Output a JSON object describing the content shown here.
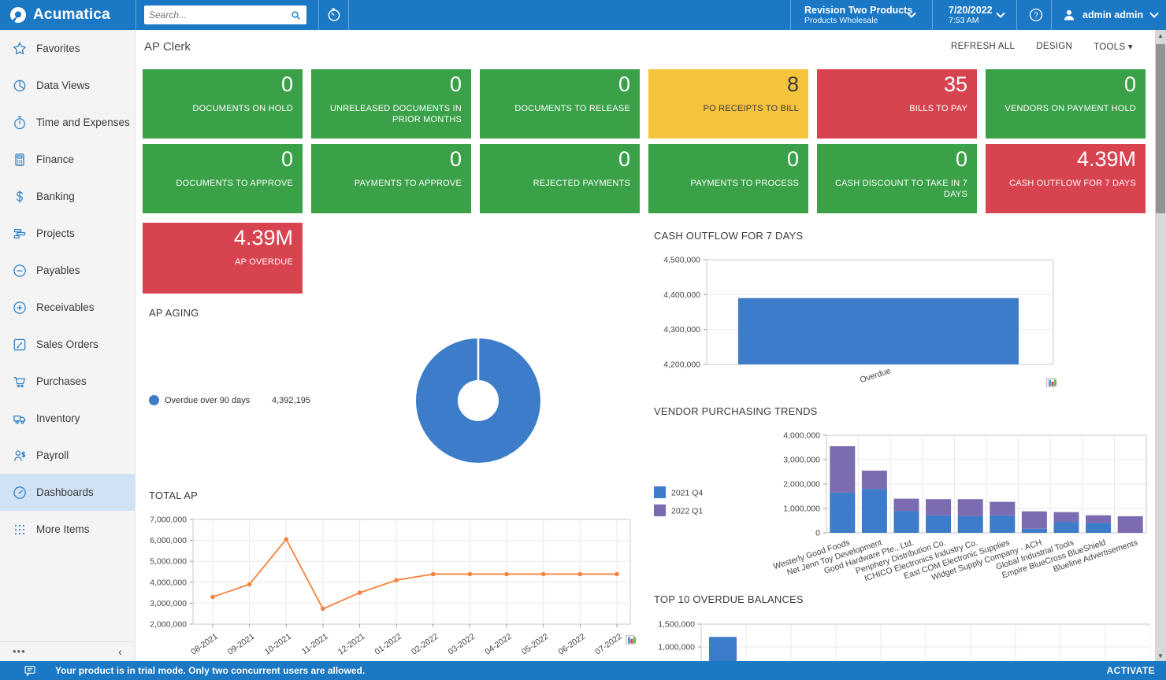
{
  "topbar": {
    "brand": "Acumatica",
    "search_placeholder": "Search...",
    "company": {
      "name": "Revision Two Products",
      "branch": "Products Wholesale"
    },
    "datetime": {
      "date": "7/20/2022",
      "time": "7:53 AM"
    },
    "user": "admin admin"
  },
  "sidebar": {
    "items": [
      {
        "label": "Favorites",
        "icon": "star"
      },
      {
        "label": "Data Views",
        "icon": "pie"
      },
      {
        "label": "Time and Expenses",
        "icon": "stopwatch"
      },
      {
        "label": "Finance",
        "icon": "calculator"
      },
      {
        "label": "Banking",
        "icon": "dollar"
      },
      {
        "label": "Projects",
        "icon": "bars"
      },
      {
        "label": "Payables",
        "icon": "minus-circle"
      },
      {
        "label": "Receivables",
        "icon": "plus-circle"
      },
      {
        "label": "Sales Orders",
        "icon": "edit"
      },
      {
        "label": "Purchases",
        "icon": "cart"
      },
      {
        "label": "Inventory",
        "icon": "truck"
      },
      {
        "label": "Payroll",
        "icon": "person-dollar"
      },
      {
        "label": "Dashboards",
        "icon": "gauge",
        "selected": true
      },
      {
        "label": "More Items",
        "icon": "grid"
      }
    ]
  },
  "page": {
    "title": "AP Clerk",
    "actions": [
      {
        "label": "REFRESH ALL",
        "caret": false
      },
      {
        "label": "DESIGN",
        "caret": false
      },
      {
        "label": "TOOLS",
        "caret": true
      }
    ]
  },
  "tiles": [
    {
      "value": "0",
      "label": "DOCUMENTS ON HOLD",
      "color": "green"
    },
    {
      "value": "0",
      "label": "UNRELEASED DOCUMENTS IN PRIOR MONTHS",
      "color": "green"
    },
    {
      "value": "0",
      "label": "DOCUMENTS TO RELEASE",
      "color": "green"
    },
    {
      "value": "8",
      "label": "PO RECEIPTS TO BILL",
      "color": "yellow"
    },
    {
      "value": "35",
      "label": "BILLS TO PAY",
      "color": "red"
    },
    {
      "value": "0",
      "label": "VENDORS ON PAYMENT HOLD",
      "color": "green"
    },
    {
      "value": "0",
      "label": "DOCUMENTS TO APPROVE",
      "color": "green"
    },
    {
      "value": "0",
      "label": "PAYMENTS TO APPROVE",
      "color": "green"
    },
    {
      "value": "0",
      "label": "REJECTED PAYMENTS",
      "color": "green"
    },
    {
      "value": "0",
      "label": "PAYMENTS TO PROCESS",
      "color": "green"
    },
    {
      "value": "0",
      "label": "CASH DISCOUNT TO TAKE IN 7 DAYS",
      "color": "green"
    },
    {
      "value": "4.39M",
      "label": "CASH OUTFLOW FOR 7 DAYS",
      "color": "red"
    },
    {
      "value": "4.39M",
      "label": "AP OVERDUE",
      "color": "red"
    }
  ],
  "palette": {
    "header_blue": "#1b78c4",
    "tile_green": "#3aa149",
    "tile_yellow": "#f6c33c",
    "tile_red": "#d84350",
    "chart_blue": "#3d7cc9",
    "chart_purple": "#7d6bb2",
    "chart_orange": "#f5823d"
  },
  "chart_data": [
    {
      "id": "ap_aging",
      "type": "pie",
      "title": "AP AGING",
      "donut": true,
      "slices": [
        {
          "label": "Overdue over 90 days",
          "value": 4392195,
          "value_text": "4,392,195",
          "color": "#3d7cc9"
        }
      ],
      "legend_position": "left"
    },
    {
      "id": "cash_outflow",
      "type": "bar",
      "title": "CASH OUTFLOW FOR 7 DAYS",
      "categories": [
        "Overdue"
      ],
      "values": [
        4390000
      ],
      "ylim": [
        4200000,
        4500000
      ],
      "yticks": [
        4200000,
        4300000,
        4400000,
        4500000
      ],
      "bar_color": "#3d7cc9",
      "grid": true
    },
    {
      "id": "vendor_trends",
      "type": "bar",
      "stacked": true,
      "title": "VENDOR PURCHASING TRENDS",
      "categories": [
        "Westerly Good Foods",
        "Net Jenn Toy Development",
        "Good Hardware Pte., Ltd.",
        "Periphery Distribution Co.",
        "ICHICO Electronics Industry Co.",
        "East COM Electronic Supplies",
        "Widget Supply Company - ACH",
        "Global Industrial Tools",
        "Empire BlueCross BlueShield",
        "Blueline Advertisements"
      ],
      "series": [
        {
          "name": "2021 Q4",
          "color": "#3d7cc9",
          "values": [
            1650000,
            1800000,
            900000,
            720000,
            680000,
            720000,
            170000,
            450000,
            400000,
            0
          ]
        },
        {
          "name": "2022 Q1",
          "color": "#7d6bb2",
          "values": [
            1900000,
            750000,
            500000,
            660000,
            700000,
            550000,
            710000,
            400000,
            320000,
            680000
          ]
        }
      ],
      "ylim": [
        0,
        4000000
      ],
      "yticks": [
        0,
        1000000,
        2000000,
        3000000,
        4000000
      ],
      "legend_position": "left",
      "grid": true
    },
    {
      "id": "total_ap",
      "type": "line",
      "title": "TOTAL AP",
      "x": [
        "08-2021",
        "09-2021",
        "10-2021",
        "11-2021",
        "12-2021",
        "01-2022",
        "02-2022",
        "03-2022",
        "04-2022",
        "05-2022",
        "06-2022",
        "07-2022"
      ],
      "values": [
        3300000,
        3900000,
        6050000,
        2730000,
        3500000,
        4100000,
        4390000,
        4390000,
        4390000,
        4390000,
        4390000,
        4390000
      ],
      "ylim": [
        2000000,
        7000000
      ],
      "yticks": [
        2000000,
        3000000,
        4000000,
        5000000,
        6000000,
        7000000
      ],
      "line_color": "#f5823d",
      "markers": true,
      "grid": true
    },
    {
      "id": "top10_overdue",
      "type": "bar",
      "title": "TOP 10 OVERDUE BALANCES",
      "note": "partially visible - clipped by status bar",
      "visible_values": [
        1220000
      ],
      "visible_yticks": [
        1000000,
        1500000
      ],
      "bar_color": "#3d7cc9",
      "grid": true
    }
  ],
  "statusbar": {
    "message": "Your product is in trial mode. Only two concurrent users are allowed.",
    "action": "ACTIVATE"
  }
}
